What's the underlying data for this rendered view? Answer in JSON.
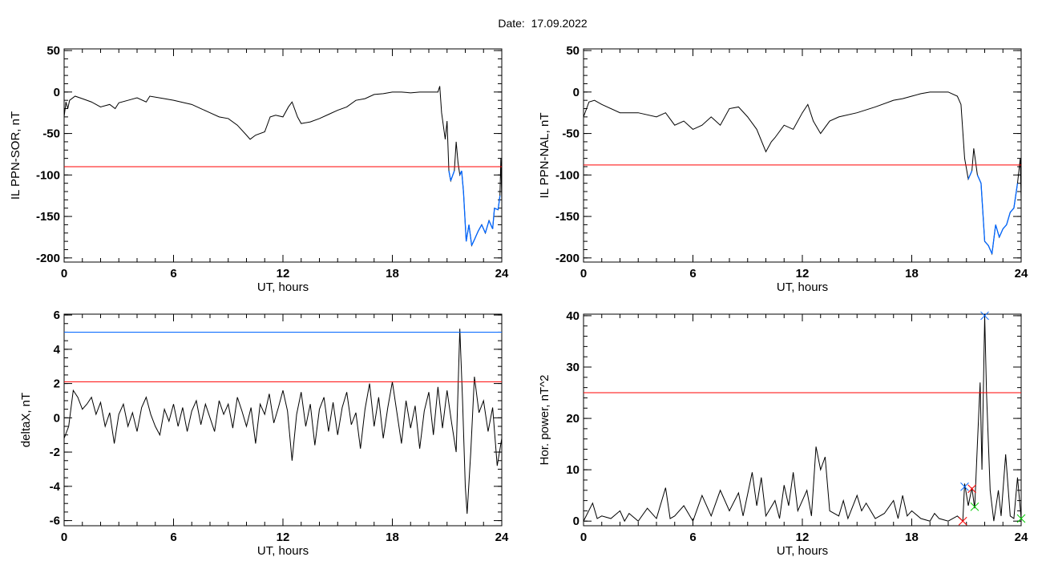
{
  "title": "Date:  17.09.2022",
  "chart_data": [
    {
      "type": "line",
      "ylabel": "IL PPN-SOR, nT",
      "xlabel": "UT, hours",
      "xlim": [
        0,
        24
      ],
      "ylim": [
        -205,
        52
      ],
      "xticks": [
        "0",
        "6",
        "12",
        "18",
        "24"
      ],
      "yticks": [
        {
          "v": 50,
          "label": "50"
        },
        {
          "v": 0,
          "label": "0"
        },
        {
          "v": -50,
          "label": "-50"
        },
        {
          "v": -100,
          "label": "-100"
        },
        {
          "v": -150,
          "label": "-150"
        },
        {
          "v": -200,
          "label": "-200"
        }
      ],
      "y_minor_step": 10,
      "threshold_lines": [
        {
          "value": -90,
          "color": "#ff0000"
        }
      ],
      "below_threshold_color": "#0066ff",
      "series_color": "#000000",
      "x": [
        0,
        0.1,
        0.2,
        0.3,
        0.6,
        1,
        1.5,
        2,
        2.5,
        2.8,
        3,
        3.5,
        4,
        4.5,
        4.7,
        5.5,
        6,
        7,
        7.5,
        8,
        8.5,
        9,
        9.5,
        10,
        10.2,
        10.5,
        11,
        11.3,
        11.6,
        12,
        12.3,
        12.5,
        12.8,
        13,
        13.5,
        14,
        14.5,
        15,
        15.5,
        16,
        16.5,
        17,
        17.5,
        18,
        18.5,
        19,
        19.5,
        20,
        20.5,
        20.6,
        20.7,
        20.9,
        21,
        21.1,
        21.2,
        21.4,
        21.5,
        21.6,
        21.7,
        21.8,
        21.9,
        22.05,
        22.2,
        22.35,
        22.5,
        22.7,
        22.9,
        23.1,
        23.3,
        23.5,
        23.6,
        23.8,
        23.9,
        23.95,
        24
      ],
      "y": [
        -30,
        -12,
        -20,
        -10,
        -5,
        -8,
        -12,
        -18,
        -15,
        -20,
        -13,
        -10,
        -7,
        -12,
        -5,
        -8,
        -10,
        -15,
        -20,
        -25,
        -30,
        -32,
        -40,
        -52,
        -57,
        -52,
        -48,
        -30,
        -28,
        -30,
        -18,
        -12,
        -30,
        -38,
        -36,
        -32,
        -27,
        -22,
        -18,
        -10,
        -8,
        -3,
        -2,
        0,
        0,
        -1,
        0,
        0,
        0,
        7,
        -25,
        -57,
        -35,
        -95,
        -107,
        -95,
        -60,
        -85,
        -100,
        -95,
        -120,
        -180,
        -160,
        -185,
        -178,
        -168,
        -160,
        -170,
        -155,
        -165,
        -140,
        -142,
        -125,
        -80,
        -130
      ]
    },
    {
      "type": "line",
      "ylabel": "IL PPN-NAL, nT",
      "xlabel": "UT, hours",
      "xlim": [
        0,
        24
      ],
      "ylim": [
        -205,
        52
      ],
      "xticks": [
        "0",
        "6",
        "12",
        "18",
        "24"
      ],
      "yticks": [
        {
          "v": 50,
          "label": "50"
        },
        {
          "v": 0,
          "label": "0"
        },
        {
          "v": -50,
          "label": "-50"
        },
        {
          "v": -100,
          "label": "-100"
        },
        {
          "v": -150,
          "label": "-150"
        },
        {
          "v": -200,
          "label": "-200"
        }
      ],
      "y_minor_step": 10,
      "threshold_lines": [
        {
          "value": -88,
          "color": "#ff0000"
        }
      ],
      "below_threshold_color": "#0066ff",
      "series_color": "#000000",
      "x": [
        0,
        0.3,
        0.6,
        1,
        2,
        3,
        4,
        4.5,
        5,
        5.5,
        6,
        6.5,
        7,
        7.5,
        8,
        8.5,
        9,
        9.5,
        10,
        10.3,
        10.5,
        11,
        11.5,
        12,
        12.3,
        12.6,
        13,
        13.5,
        14,
        15,
        16,
        17,
        17.5,
        18,
        18.5,
        19,
        20,
        20.5,
        20.7,
        20.9,
        21.1,
        21.3,
        21.4,
        21.6,
        21.8,
        22,
        22.2,
        22.4,
        22.6,
        22.8,
        23,
        23.2,
        23.4,
        23.6,
        23.8,
        23.95,
        24
      ],
      "y": [
        -30,
        -12,
        -10,
        -15,
        -25,
        -25,
        -30,
        -25,
        -40,
        -35,
        -45,
        -40,
        -30,
        -40,
        -20,
        -18,
        -30,
        -45,
        -72,
        -60,
        -55,
        -40,
        -45,
        -25,
        -15,
        -35,
        -50,
        -35,
        -30,
        -25,
        -18,
        -10,
        -8,
        -5,
        -2,
        0,
        0,
        -5,
        -15,
        -80,
        -105,
        -95,
        -68,
        -100,
        -110,
        -180,
        -185,
        -195,
        -160,
        -175,
        -165,
        -160,
        -145,
        -140,
        -110,
        -80,
        -130
      ]
    },
    {
      "type": "line",
      "ylabel": "deltaX, nT",
      "xlabel": "UT, hours",
      "xlim": [
        0,
        24
      ],
      "ylim": [
        -6.3,
        6.05
      ],
      "xticks": [
        "0",
        "6",
        "12",
        "18",
        "24"
      ],
      "yticks": [
        {
          "v": 6,
          "label": "6"
        },
        {
          "v": 4,
          "label": "4"
        },
        {
          "v": 2,
          "label": "2"
        },
        {
          "v": 0,
          "label": "0"
        },
        {
          "v": -2,
          "label": "-2"
        },
        {
          "v": -4,
          "label": "-4"
        },
        {
          "v": -6,
          "label": "-6"
        }
      ],
      "y_minor_step": 0.5,
      "threshold_lines": [
        {
          "value": 5.0,
          "color": "#0066ff"
        },
        {
          "value": 2.1,
          "color": "#ff0000"
        }
      ],
      "series_color": "#000000",
      "x": [
        0,
        0.25,
        0.5,
        0.75,
        1,
        1.25,
        1.5,
        1.75,
        2,
        2.25,
        2.5,
        2.75,
        3,
        3.25,
        3.5,
        3.75,
        4,
        4.25,
        4.5,
        4.75,
        5,
        5.25,
        5.5,
        5.75,
        6,
        6.25,
        6.5,
        6.75,
        7,
        7.25,
        7.5,
        7.75,
        8,
        8.25,
        8.5,
        8.75,
        9,
        9.25,
        9.5,
        9.75,
        10,
        10.25,
        10.5,
        10.75,
        11,
        11.25,
        11.5,
        11.75,
        12,
        12.25,
        12.5,
        12.75,
        13,
        13.25,
        13.5,
        13.75,
        14,
        14.25,
        14.5,
        14.75,
        15,
        15.25,
        15.5,
        15.75,
        16,
        16.25,
        16.5,
        16.75,
        17,
        17.25,
        17.5,
        17.75,
        18,
        18.25,
        18.5,
        18.75,
        19,
        19.25,
        19.5,
        19.75,
        20,
        20.25,
        20.5,
        20.75,
        21,
        21.25,
        21.5,
        21.7,
        21.85,
        22,
        22.1,
        22.3,
        22.5,
        22.75,
        23,
        23.25,
        23.5,
        23.75,
        24
      ],
      "y": [
        -1.2,
        -0.5,
        1.6,
        1.2,
        0.5,
        0.8,
        1.2,
        0.2,
        0.9,
        -0.5,
        0.3,
        -1.5,
        0.2,
        0.8,
        -0.5,
        0.3,
        -0.8,
        0.6,
        1.2,
        0.2,
        -0.5,
        -1.0,
        0.5,
        -0.2,
        0.8,
        -0.5,
        0.6,
        -0.8,
        0.4,
        1.0,
        -0.4,
        0.8,
        0,
        -0.8,
        1.0,
        0.2,
        0.8,
        -0.6,
        1.2,
        0.4,
        -0.5,
        0.6,
        -1.5,
        0.8,
        0.2,
        1.4,
        -0.3,
        0.6,
        1.6,
        0.4,
        -2.5,
        0.2,
        1.5,
        -0.5,
        0.8,
        -1.6,
        0.5,
        1.2,
        -0.8,
        0.9,
        -1.0,
        0.6,
        1.5,
        -0.4,
        0.3,
        -1.8,
        0.5,
        2.0,
        -0.5,
        1.2,
        -1.2,
        0.6,
        2.1,
        0.3,
        -1.5,
        1.0,
        -0.6,
        0.7,
        -1.8,
        0.4,
        1.5,
        -1.0,
        1.8,
        -0.6,
        1.6,
        -0.3,
        -2.0,
        5.2,
        1.0,
        -4.0,
        -5.6,
        -2.0,
        2.4,
        0.3,
        1.0,
        -0.8,
        0.6,
        -2.8,
        -1.2
      ]
    },
    {
      "type": "line",
      "ylabel": "Hor. power, nT^2",
      "xlabel": "UT, hours",
      "xlim": [
        0,
        24
      ],
      "ylim": [
        -0.9,
        40.3
      ],
      "xticks": [
        "0",
        "6",
        "12",
        "18",
        "24"
      ],
      "yticks": [
        {
          "v": 40,
          "label": "40"
        },
        {
          "v": 30,
          "label": "30"
        },
        {
          "v": 20,
          "label": "20"
        },
        {
          "v": 10,
          "label": "10"
        },
        {
          "v": 0,
          "label": "0"
        }
      ],
      "y_minor_step": 2,
      "threshold_lines": [
        {
          "value": 25,
          "color": "#ff0000"
        }
      ],
      "series_color": "#000000",
      "x": [
        0,
        0.5,
        0.75,
        1,
        1.5,
        2,
        2.25,
        2.5,
        3,
        3.5,
        4,
        4.5,
        4.75,
        5,
        5.5,
        6,
        6.5,
        7,
        7.5,
        8,
        8.5,
        8.75,
        9.25,
        9.5,
        9.75,
        10,
        10.5,
        10.75,
        11,
        11.25,
        11.5,
        11.75,
        12.25,
        12.5,
        12.75,
        13,
        13.25,
        13.5,
        14,
        14.25,
        14.5,
        15,
        15.25,
        15.5,
        16,
        16.5,
        17,
        17.25,
        17.5,
        17.75,
        18,
        18.5,
        19,
        19.25,
        19.5,
        20,
        20.5,
        20.8,
        20.9,
        21.1,
        21.3,
        21.45,
        21.6,
        21.75,
        21.85,
        22,
        22.1,
        22.3,
        22.5,
        22.75,
        22.9,
        23.15,
        23.4,
        23.6,
        23.8,
        24
      ],
      "y": [
        0,
        3.5,
        0.5,
        1,
        0.5,
        2,
        0,
        1.5,
        0,
        2.5,
        0.5,
        6.5,
        0.5,
        1,
        3,
        0,
        5,
        1,
        6,
        2,
        5.5,
        1,
        9.5,
        3,
        8.5,
        1,
        4,
        0.5,
        7,
        3,
        9.5,
        2,
        6,
        1,
        14.5,
        10,
        12.5,
        2,
        1,
        4,
        0.5,
        5,
        2,
        3.5,
        0.5,
        1.5,
        4,
        0.5,
        5,
        1,
        2,
        0.5,
        0,
        1.5,
        0.5,
        0,
        1,
        0,
        7.3,
        3,
        6.5,
        2.5,
        15,
        27,
        10,
        40,
        25,
        6,
        0,
        6,
        1,
        13,
        1,
        0.5,
        8.5,
        0.5
      ],
      "markers": [
        {
          "x": 22.0,
          "y": 40,
          "color": "#0066ff"
        },
        {
          "x": 20.9,
          "y": 6.7,
          "color": "#0066ff"
        },
        {
          "x": 21.3,
          "y": 6.3,
          "color": "#ff0000"
        },
        {
          "x": 21.45,
          "y": 2.8,
          "color": "#00cc00"
        },
        {
          "x": 20.8,
          "y": 0,
          "color": "#ff0000"
        },
        {
          "x": 24.0,
          "y": 0.5,
          "color": "#00cc00"
        }
      ]
    }
  ]
}
